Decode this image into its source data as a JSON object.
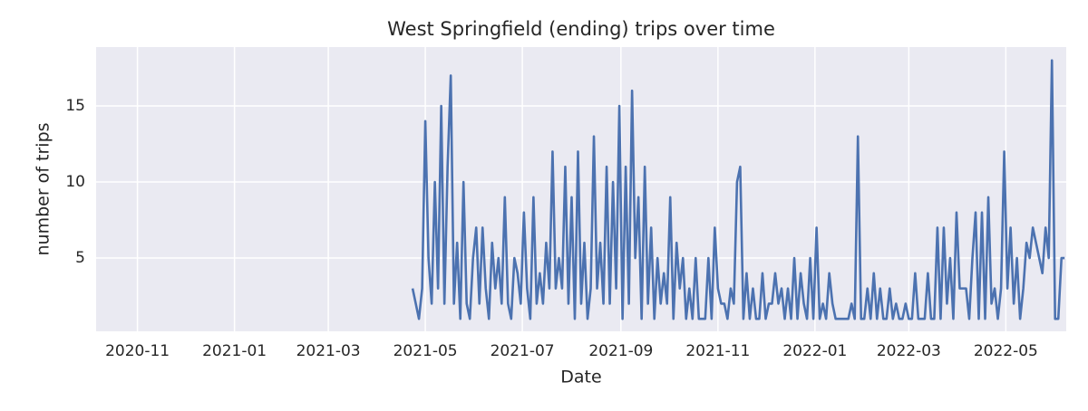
{
  "chart_data": {
    "type": "line",
    "title": "West Springfield (ending) trips over time",
    "x_label": "Date",
    "y_label": "number of trips",
    "x": [
      173,
      175,
      177,
      179,
      181,
      183,
      185,
      187,
      189,
      191,
      193,
      195,
      197,
      199,
      201,
      203,
      205,
      207,
      209,
      211,
      213,
      215,
      217,
      219,
      221,
      223,
      225,
      227,
      229,
      231,
      233,
      235,
      237,
      239,
      241,
      243,
      245,
      247,
      249,
      251,
      253,
      255,
      257,
      259,
      261,
      263,
      265,
      267,
      269,
      271,
      273,
      275,
      277,
      279,
      281,
      283,
      285,
      287,
      289,
      291,
      293,
      295,
      297,
      299,
      301,
      303,
      305,
      307,
      309,
      311,
      313,
      315,
      317,
      319,
      321,
      323,
      325,
      327,
      329,
      331,
      333,
      335,
      337,
      339,
      341,
      343,
      345,
      347,
      349,
      351,
      353,
      355,
      357,
      359,
      361,
      363,
      365,
      367,
      369,
      371,
      373,
      375,
      377,
      379,
      381,
      383,
      385,
      387,
      389,
      391,
      393,
      395,
      397,
      399,
      401,
      403,
      405,
      407,
      409,
      411,
      413,
      415,
      417,
      419,
      421,
      423,
      425,
      427,
      429,
      431,
      433,
      435,
      437,
      439,
      441,
      443,
      445,
      447,
      449,
      451,
      453,
      455,
      457,
      459,
      461,
      463,
      465,
      467,
      469,
      471,
      473,
      475,
      477,
      479,
      481,
      483,
      485,
      487,
      489,
      491,
      493,
      495,
      497,
      499,
      501,
      503,
      505,
      507,
      509,
      511,
      513,
      515,
      517,
      519,
      521,
      523,
      525,
      527,
      529,
      531,
      533,
      535,
      537,
      539,
      541,
      543,
      545,
      547,
      549,
      551,
      553,
      555,
      557,
      559,
      561,
      563,
      565,
      567,
      569,
      571,
      573,
      575,
      577,
      579,
      581,
      583
    ],
    "series": [
      {
        "name": "trips",
        "color": "#4c72b0",
        "values": [
          3,
          2,
          1,
          3,
          14,
          5,
          2,
          10,
          3,
          15,
          2,
          11,
          17,
          2,
          6,
          1,
          10,
          2,
          1,
          5,
          7,
          2,
          7,
          3,
          1,
          6,
          3,
          5,
          2,
          9,
          2,
          1,
          5,
          4,
          2,
          8,
          3,
          1,
          9,
          2,
          4,
          2,
          6,
          3,
          12,
          3,
          5,
          3,
          11,
          2,
          9,
          1,
          12,
          2,
          6,
          1,
          3,
          13,
          3,
          6,
          2,
          11,
          2,
          10,
          3,
          15,
          1,
          11,
          2,
          16,
          5,
          9,
          1,
          11,
          2,
          7,
          1,
          5,
          2,
          4,
          2,
          9,
          1,
          6,
          3,
          5,
          1,
          3,
          1,
          5,
          1,
          1,
          1,
          5,
          1,
          7,
          3,
          2,
          2,
          1,
          3,
          2,
          10,
          11,
          1,
          4,
          1,
          3,
          1,
          1,
          4,
          1,
          2,
          2,
          4,
          2,
          3,
          1,
          3,
          1,
          5,
          1,
          4,
          2,
          1,
          5,
          1,
          7,
          1,
          2,
          1,
          4,
          2,
          1,
          1,
          1,
          1,
          1,
          2,
          1,
          13,
          1,
          1,
          3,
          1,
          4,
          1,
          3,
          1,
          1,
          3,
          1,
          2,
          1,
          1,
          2,
          1,
          1,
          4,
          1,
          1,
          1,
          4,
          1,
          1,
          7,
          1,
          7,
          2,
          5,
          1,
          8,
          3,
          3,
          3,
          1,
          5,
          8,
          1,
          8,
          1,
          9,
          2,
          3,
          1,
          3,
          12,
          3,
          7,
          2,
          5,
          1,
          3,
          6,
          5,
          7,
          6,
          5,
          4,
          7,
          5,
          18,
          1,
          1,
          5,
          5
        ]
      }
    ],
    "xlim": [
      -26,
      584
    ],
    "xticks": [
      {
        "value": 0,
        "label": "2020-11"
      },
      {
        "value": 61,
        "label": "2021-01"
      },
      {
        "value": 120,
        "label": "2021-03"
      },
      {
        "value": 181,
        "label": "2021-05"
      },
      {
        "value": 242,
        "label": "2021-07"
      },
      {
        "value": 304,
        "label": "2021-09"
      },
      {
        "value": 365,
        "label": "2021-11"
      },
      {
        "value": 426,
        "label": "2022-01"
      },
      {
        "value": 485,
        "label": "2022-03"
      },
      {
        "value": 546,
        "label": "2022-05"
      }
    ],
    "ylim": [
      0.18,
      18.87
    ],
    "yticks": [
      5,
      10,
      15
    ],
    "grid": true
  }
}
